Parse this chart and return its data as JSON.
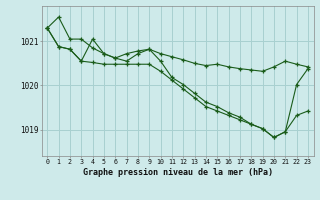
{
  "title": "Graphe pression niveau de la mer (hPa)",
  "background_color": "#ceeaea",
  "grid_color": "#a8d0d0",
  "line_color": "#1a5c1a",
  "x_labels": [
    "0",
    "1",
    "2",
    "3",
    "4",
    "5",
    "6",
    "7",
    "8",
    "9",
    "10",
    "11",
    "12",
    "13",
    "14",
    "15",
    "16",
    "17",
    "18",
    "19",
    "20",
    "21",
    "22",
    "23"
  ],
  "ylim": [
    1018.4,
    1021.8
  ],
  "yticks": [
    1019,
    1020,
    1021
  ],
  "hours": [
    0,
    1,
    2,
    3,
    4,
    5,
    6,
    7,
    8,
    9,
    10,
    11,
    12,
    13,
    14,
    15,
    16,
    17,
    18,
    19,
    20,
    21,
    22,
    23
  ],
  "line1": [
    1021.3,
    1021.55,
    1021.05,
    1021.05,
    1020.85,
    1020.72,
    1020.62,
    1020.72,
    1020.78,
    1020.82,
    1020.72,
    1020.65,
    1020.58,
    1020.5,
    1020.45,
    1020.48,
    1020.42,
    1020.38,
    1020.35,
    1020.32,
    1020.42,
    1020.55,
    1020.48,
    1020.42
  ],
  "line2": [
    1021.3,
    1020.88,
    1020.82,
    1020.55,
    1021.05,
    1020.72,
    1020.62,
    1020.55,
    1020.72,
    1020.82,
    1020.55,
    1020.18,
    1020.02,
    1019.82,
    1019.62,
    1019.52,
    1019.38,
    1019.28,
    1019.12,
    1019.02,
    1018.82,
    1018.95,
    1020.02,
    1020.38
  ],
  "line3": [
    1021.3,
    1020.88,
    1020.82,
    1020.55,
    1020.52,
    1020.48,
    1020.48,
    1020.48,
    1020.48,
    1020.48,
    1020.32,
    1020.12,
    1019.92,
    1019.72,
    1019.52,
    1019.42,
    1019.32,
    1019.22,
    1019.12,
    1019.02,
    1018.82,
    1018.95,
    1019.32,
    1019.42
  ]
}
